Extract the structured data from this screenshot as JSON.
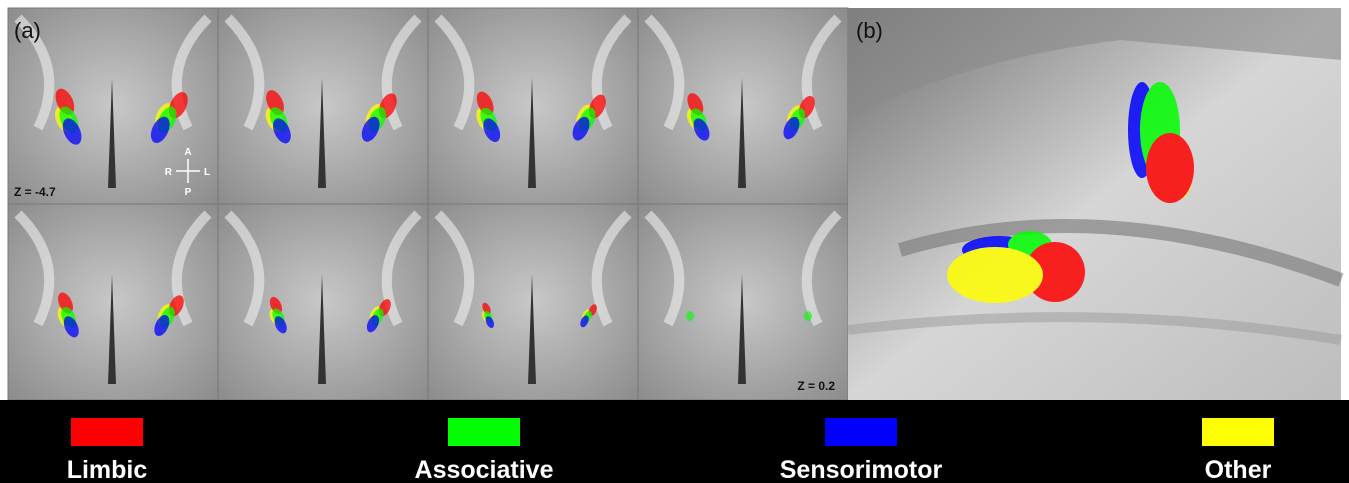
{
  "panels": {
    "a": {
      "label": "(a)",
      "z_first": "Z = -4.7",
      "z_last": "Z = 0.2",
      "orientation": {
        "anterior": "A",
        "posterior": "P",
        "right": "R",
        "left": "L"
      }
    },
    "b": {
      "label": "(b)"
    }
  },
  "legend": {
    "items": [
      {
        "label": "Limbic",
        "color": "#ff0000"
      },
      {
        "label": "Associative",
        "color": "#00ff00"
      },
      {
        "label": "Sensorimotor",
        "color": "#0000ff"
      },
      {
        "label": "Other",
        "color": "#ffff00"
      }
    ]
  }
}
